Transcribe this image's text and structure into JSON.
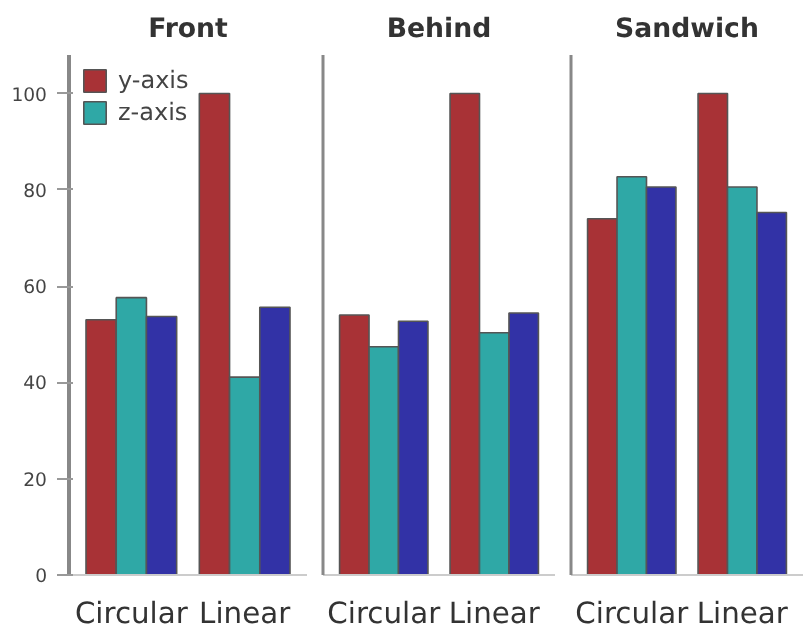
{
  "chart_data": [
    {
      "type": "bar",
      "title": "Front",
      "categories": [
        "Circular",
        "Linear"
      ],
      "ylim": [
        0,
        108
      ],
      "yticks": [
        0,
        20,
        40,
        60,
        80,
        100
      ],
      "grid": false,
      "legend": "top left",
      "series": [
        {
          "name": "y-axis",
          "color": "#a83236",
          "values": [
            53,
            100
          ]
        },
        {
          "name": "z-axis",
          "color": "#2fa8a6",
          "values": [
            57.6,
            41.1
          ]
        },
        {
          "color": "#3232a6",
          "values": [
            53.7,
            55.6
          ]
        }
      ]
    },
    {
      "type": "bar",
      "title": "Behind",
      "categories": [
        "Circular",
        "Linear"
      ],
      "ylim": [
        0,
        108
      ],
      "yticks": [
        0,
        20,
        40,
        60,
        80,
        100
      ],
      "grid": false,
      "tick_labels": "x",
      "series": [
        {
          "color": "#a83236",
          "values": [
            54,
            100
          ]
        },
        {
          "color": "#2fa8a6",
          "values": [
            47.4,
            50.3
          ]
        },
        {
          "color": "#3232a6",
          "values": [
            52.7,
            54.4
          ]
        }
      ]
    },
    {
      "type": "bar",
      "title": "Sandwich",
      "categories": [
        "Circular",
        "Linear"
      ],
      "ylim": [
        0,
        108
      ],
      "yticks": [
        0,
        20,
        40,
        60,
        80,
        100
      ],
      "grid": false,
      "tick_labels": "x",
      "series": [
        {
          "color": "#a83236",
          "values": [
            74,
            100
          ]
        },
        {
          "color": "#2fa8a6",
          "values": [
            82.7,
            80.6
          ]
        },
        {
          "color": "#3232a6",
          "values": [
            80.6,
            75.3
          ]
        }
      ]
    }
  ]
}
